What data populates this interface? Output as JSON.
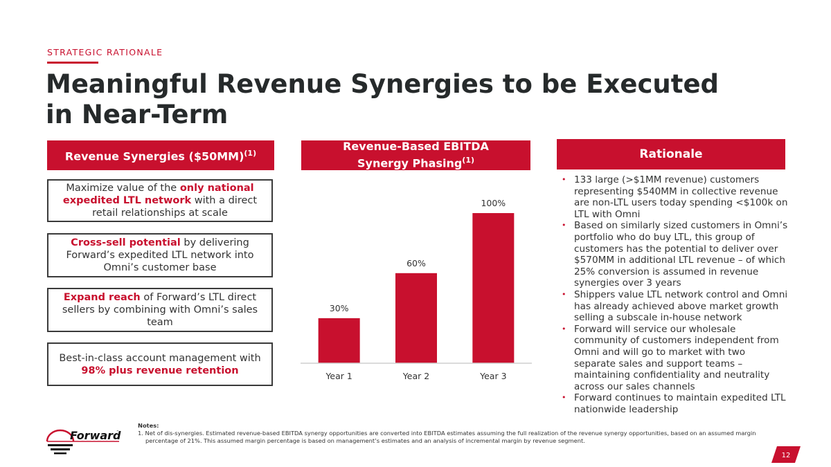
{
  "header": {
    "eyebrow": "STRATEGIC RATIONALE",
    "title": "Meaningful Revenue Synergies to be Executed in Near-Term"
  },
  "left_panel": {
    "heading": "Revenue Synergies ($50MM)",
    "heading_sup": "(1)",
    "boxes": [
      {
        "pre": "Maximize value of the ",
        "highlight": "only national expedited LTL network",
        "post": " with a direct retail relationships at scale"
      },
      {
        "pre": "",
        "highlight": "Cross-sell potential",
        "post": " by delivering Forward’s expedited LTL network into Omni’s customer base"
      },
      {
        "pre": "",
        "highlight": "Expand reach",
        "post": " of Forward’s LTL direct sellers by combining with Omni’s sales team"
      },
      {
        "pre": "Best-in-class account management with ",
        "highlight": "98% plus revenue retention",
        "post": ""
      }
    ]
  },
  "middle_panel": {
    "heading_line1": "Revenue-Based EBITDA",
    "heading_line2": "Synergy Phasing",
    "heading_sup": "(1)"
  },
  "chart_data": {
    "type": "bar",
    "title": "Revenue-Based EBITDA Synergy Phasing(1)",
    "categories": [
      "Year 1",
      "Year 2",
      "Year 3"
    ],
    "values": [
      30,
      60,
      100
    ],
    "data_labels": [
      "30%",
      "60%",
      "100%"
    ],
    "xlabel": "",
    "ylabel": "",
    "ylim": [
      0,
      100
    ],
    "unit": "%",
    "grid": false,
    "legend": "none",
    "bar_color": "#c8102e"
  },
  "right_panel": {
    "heading": "Rationale",
    "bullets": [
      "133 large (>$1MM revenue) customers representing $540MM in collective revenue are non-LTL users today spending <$100k on LTL with Omni",
      "Based on similarly sized customers in Omni’s portfolio who do buy LTL, this group of customers has the potential to deliver over $570MM in additional LTL revenue – of which 25% conversion is assumed in revenue synergies over 3 years",
      "Shippers value LTL network control and Omni has already achieved above market growth selling a subscale in-house network",
      "Forward will service our wholesale community of customers independent from Omni and will go to market with two separate sales and support teams – maintaining confidentiality and neutrality across our sales channels",
      "Forward continues to maintain expedited LTL nationwide leadership"
    ]
  },
  "footer": {
    "notes_title": "Notes:",
    "notes": [
      "1. Net of dis-synergies. Estimated revenue-based EBITDA synergy opportunities are converted into EBITDA estimates assuming the full realization of the revenue synergy opportunities, based on an assumed margin percentage of 21%. This assumed margin percentage is based on management’s estimates and an analysis of incremental margin by revenue segment."
    ],
    "logo_text": "Forward",
    "logo_tm": "™",
    "page_number": "12"
  },
  "colors": {
    "accent": "#c8102e",
    "text": "#262a2b"
  }
}
